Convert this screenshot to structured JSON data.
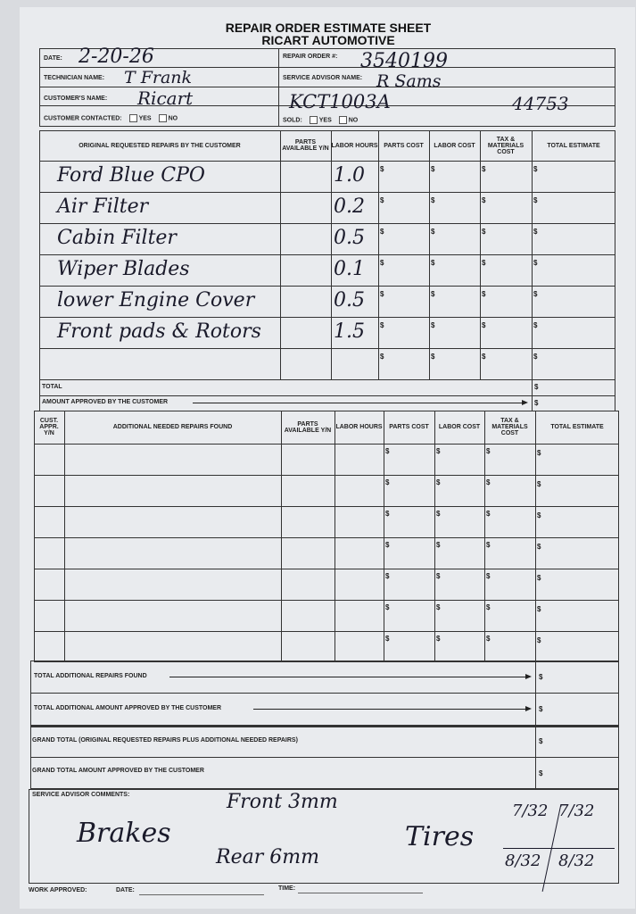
{
  "form": {
    "title": "REPAIR ORDER ESTIMATE SHEET",
    "company": "RICART AUTOMOTIVE",
    "header": {
      "date_label": "DATE:",
      "date_value": "2-20-26",
      "repair_order_label": "REPAIR ORDER #:",
      "repair_order_value": "3540199",
      "technician_label": "TECHNICIAN NAME:",
      "technician_value": "T Frank",
      "advisor_label": "SERVICE ADVISOR NAME:",
      "advisor_value": "R Sams",
      "customer_label": "CUSTOMER'S NAME:",
      "customer_value": "Ricart",
      "customer_extra_1": "KCT1003A",
      "customer_extra_2": "44753",
      "contacted_label": "CUSTOMER CONTACTED:",
      "yes_label": "YES",
      "no_label": "NO",
      "sold_label": "SOLD:"
    },
    "table1": {
      "headers": [
        "ORIGINAL REQUESTED REPAIRS BY THE CUSTOMER",
        "PARTS AVAILABLE Y/N",
        "LABOR HOURS",
        "PARTS COST",
        "LABOR COST",
        "TAX & MATERIALS COST",
        "TOTAL ESTIMATE"
      ],
      "rows": [
        {
          "repair": "Ford Blue CPO",
          "labor_hours": "1.0"
        },
        {
          "repair": "Air Filter",
          "labor_hours": "0.2"
        },
        {
          "repair": "Cabin Filter",
          "labor_hours": "0.5"
        },
        {
          "repair": "Wiper Blades",
          "labor_hours": "0.1"
        },
        {
          "repair": "lower Engine Cover",
          "labor_hours": "0.5"
        },
        {
          "repair": "Front pads & Rotors",
          "labor_hours": "1.5"
        },
        {
          "repair": "",
          "labor_hours": ""
        }
      ],
      "currency": "$",
      "total_label": "TOTAL",
      "approved_label": "AMOUNT APPROVED BY THE CUSTOMER"
    },
    "table2": {
      "headers": [
        "CUST. APPR. Y/N",
        "ADDITIONAL NEEDED REPAIRS FOUND",
        "PARTS AVAILABLE Y/N",
        "LABOR HOURS",
        "PARTS COST",
        "LABOR COST",
        "TAX & MATERIALS COST",
        "TOTAL ESTIMATE"
      ],
      "row_count": 7,
      "total_label": "TOTAL ADDITIONAL REPAIRS FOUND",
      "approved_label": "TOTAL ADDITIONAL AMOUNT APPROVED BY THE CUSTOMER"
    },
    "grand_total_label": "GRAND TOTAL (Original requested repairs plus additional needed repairs)",
    "grand_approved_label": "GRAND TOTAL AMOUNT APPROVED BY THE CUSTOMER",
    "comments": {
      "label": "SERVICE ADVISOR COMMENTS:",
      "brakes": "Brakes",
      "front": "Front 3mm",
      "rear": "Rear 6mm",
      "tires": "Tires",
      "tire_lf": "7/32",
      "tire_rf": "7/32",
      "tire_lr": "8/32",
      "tire_rr": "8/32"
    },
    "footer": {
      "work_approved_label": "WORK APPROVED:",
      "date_label": "DATE:",
      "time_label": "TIME:"
    }
  }
}
